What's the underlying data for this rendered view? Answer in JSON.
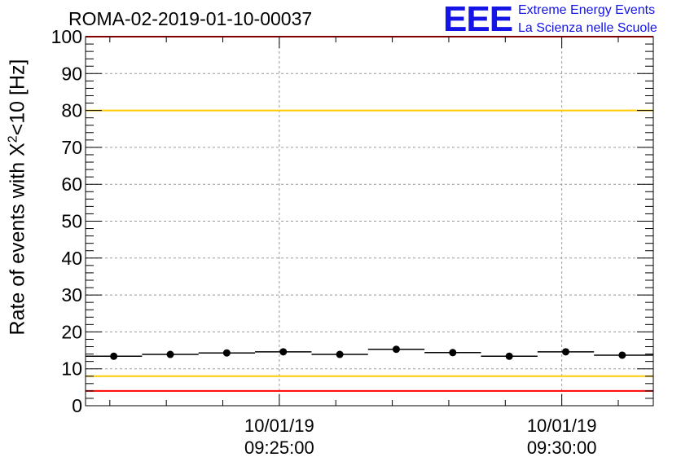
{
  "title": "ROMA-02-2019-01-10-00037",
  "logo": {
    "letters": "EEE",
    "line1": "Extreme Energy Events",
    "line2": "La Scienza nelle Scuole",
    "color": "#1414e6"
  },
  "chart_data": {
    "type": "scatter",
    "title": "ROMA-02-2019-01-10-00037",
    "ylabel": {
      "prefix": "Rate of events with ",
      "symbol": "X",
      "superscript": "2",
      "suffix": "<10 [Hz]"
    },
    "xlabel": "",
    "ylim": [
      0,
      100
    ],
    "yticks": [
      0,
      10,
      20,
      30,
      40,
      50,
      60,
      70,
      80,
      90,
      100
    ],
    "xlim_minutes_after_0920": [
      1.57,
      11.62
    ],
    "xticks": [
      {
        "minute": 5,
        "date": "10/01/19",
        "time": "09:25:00"
      },
      {
        "minute": 10,
        "date": "10/01/19",
        "time": "09:30:00"
      }
    ],
    "grid": true,
    "series": [
      {
        "x_start_minute": [
          1.57,
          2.57,
          3.57,
          4.57,
          5.57,
          6.57,
          7.57,
          8.57,
          9.57,
          10.57,
          11.57
        ],
        "x_end_minute": [
          2.57,
          3.57,
          4.57,
          5.57,
          6.57,
          7.57,
          8.57,
          9.57,
          10.57,
          11.57,
          11.62
        ],
        "x_minute": [
          2.07,
          3.07,
          4.07,
          5.07,
          6.07,
          7.07,
          8.07,
          9.07,
          10.07,
          11.07,
          11.6
        ],
        "values": [
          13.4,
          13.9,
          14.3,
          14.6,
          13.9,
          15.3,
          14.4,
          13.4,
          14.6,
          13.7,
          13.7
        ],
        "marker_shown": [
          true,
          true,
          true,
          true,
          true,
          true,
          true,
          true,
          true,
          true,
          false
        ],
        "color": "#000000"
      }
    ],
    "reference_lines": [
      {
        "y": 100,
        "color": "#ff0000"
      },
      {
        "y": 80,
        "color": "#ffcc00"
      },
      {
        "y": 8,
        "color": "#ffcc00"
      },
      {
        "y": 4,
        "color": "#ff0000"
      }
    ]
  }
}
